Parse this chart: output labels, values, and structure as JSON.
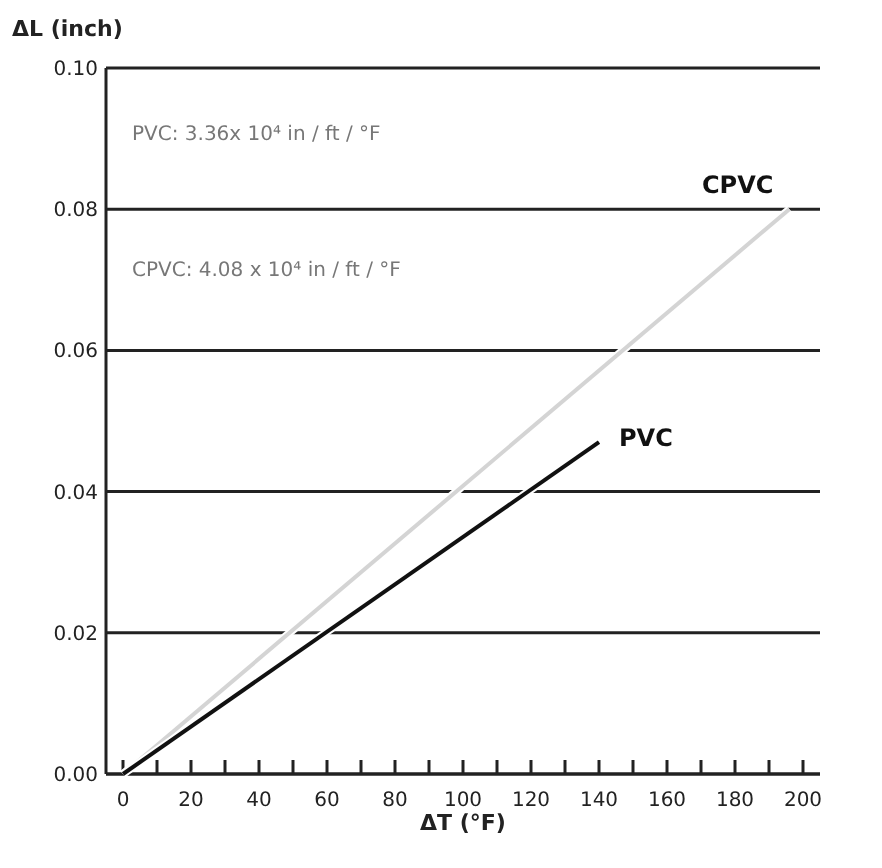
{
  "chart_data": {
    "type": "line",
    "xlabel": "ΔT (°F)",
    "ylabel": "ΔL (inch)",
    "annotations": [
      "PVC: 3.36x 10⁴ in / ft / °F",
      "CPVC: 4.08 x 10⁴ in / ft / °F"
    ],
    "series": [
      {
        "name": "CPVC",
        "color": "#d4d4d4",
        "x": [
          0,
          196
        ],
        "values": [
          0,
          0.08
        ]
      },
      {
        "name": "PVC",
        "color": "#111111",
        "x": [
          0,
          140
        ],
        "values": [
          0,
          0.047
        ]
      }
    ],
    "xlim": [
      -5,
      205
    ],
    "xticks": [
      0,
      {
        "value": 10,
        "label": null
      },
      20,
      {
        "value": 30,
        "label": null
      },
      40,
      {
        "value": 50,
        "label": null
      },
      60,
      {
        "value": 70,
        "label": null
      },
      80,
      {
        "value": 90,
        "label": null
      },
      100,
      {
        "value": 110,
        "label": null
      },
      120,
      {
        "value": 130,
        "label": null
      },
      140,
      {
        "value": 150,
        "label": null
      },
      160,
      {
        "value": 170,
        "label": null
      },
      180,
      {
        "value": 190,
        "label": null
      },
      200
    ],
    "ylim": [
      0,
      0.1
    ],
    "yticks": [
      {
        "value": 0,
        "label": "0.00"
      },
      {
        "value": 0.02,
        "label": "0.02"
      },
      {
        "value": 0.04,
        "label": "0.04"
      },
      {
        "value": 0.06,
        "label": "0.06"
      },
      {
        "value": 0.08,
        "label": "0.08"
      },
      {
        "value": 0.1,
        "label": "0.10"
      }
    ],
    "grid": "y",
    "marker": "none",
    "line_style": "solid"
  }
}
